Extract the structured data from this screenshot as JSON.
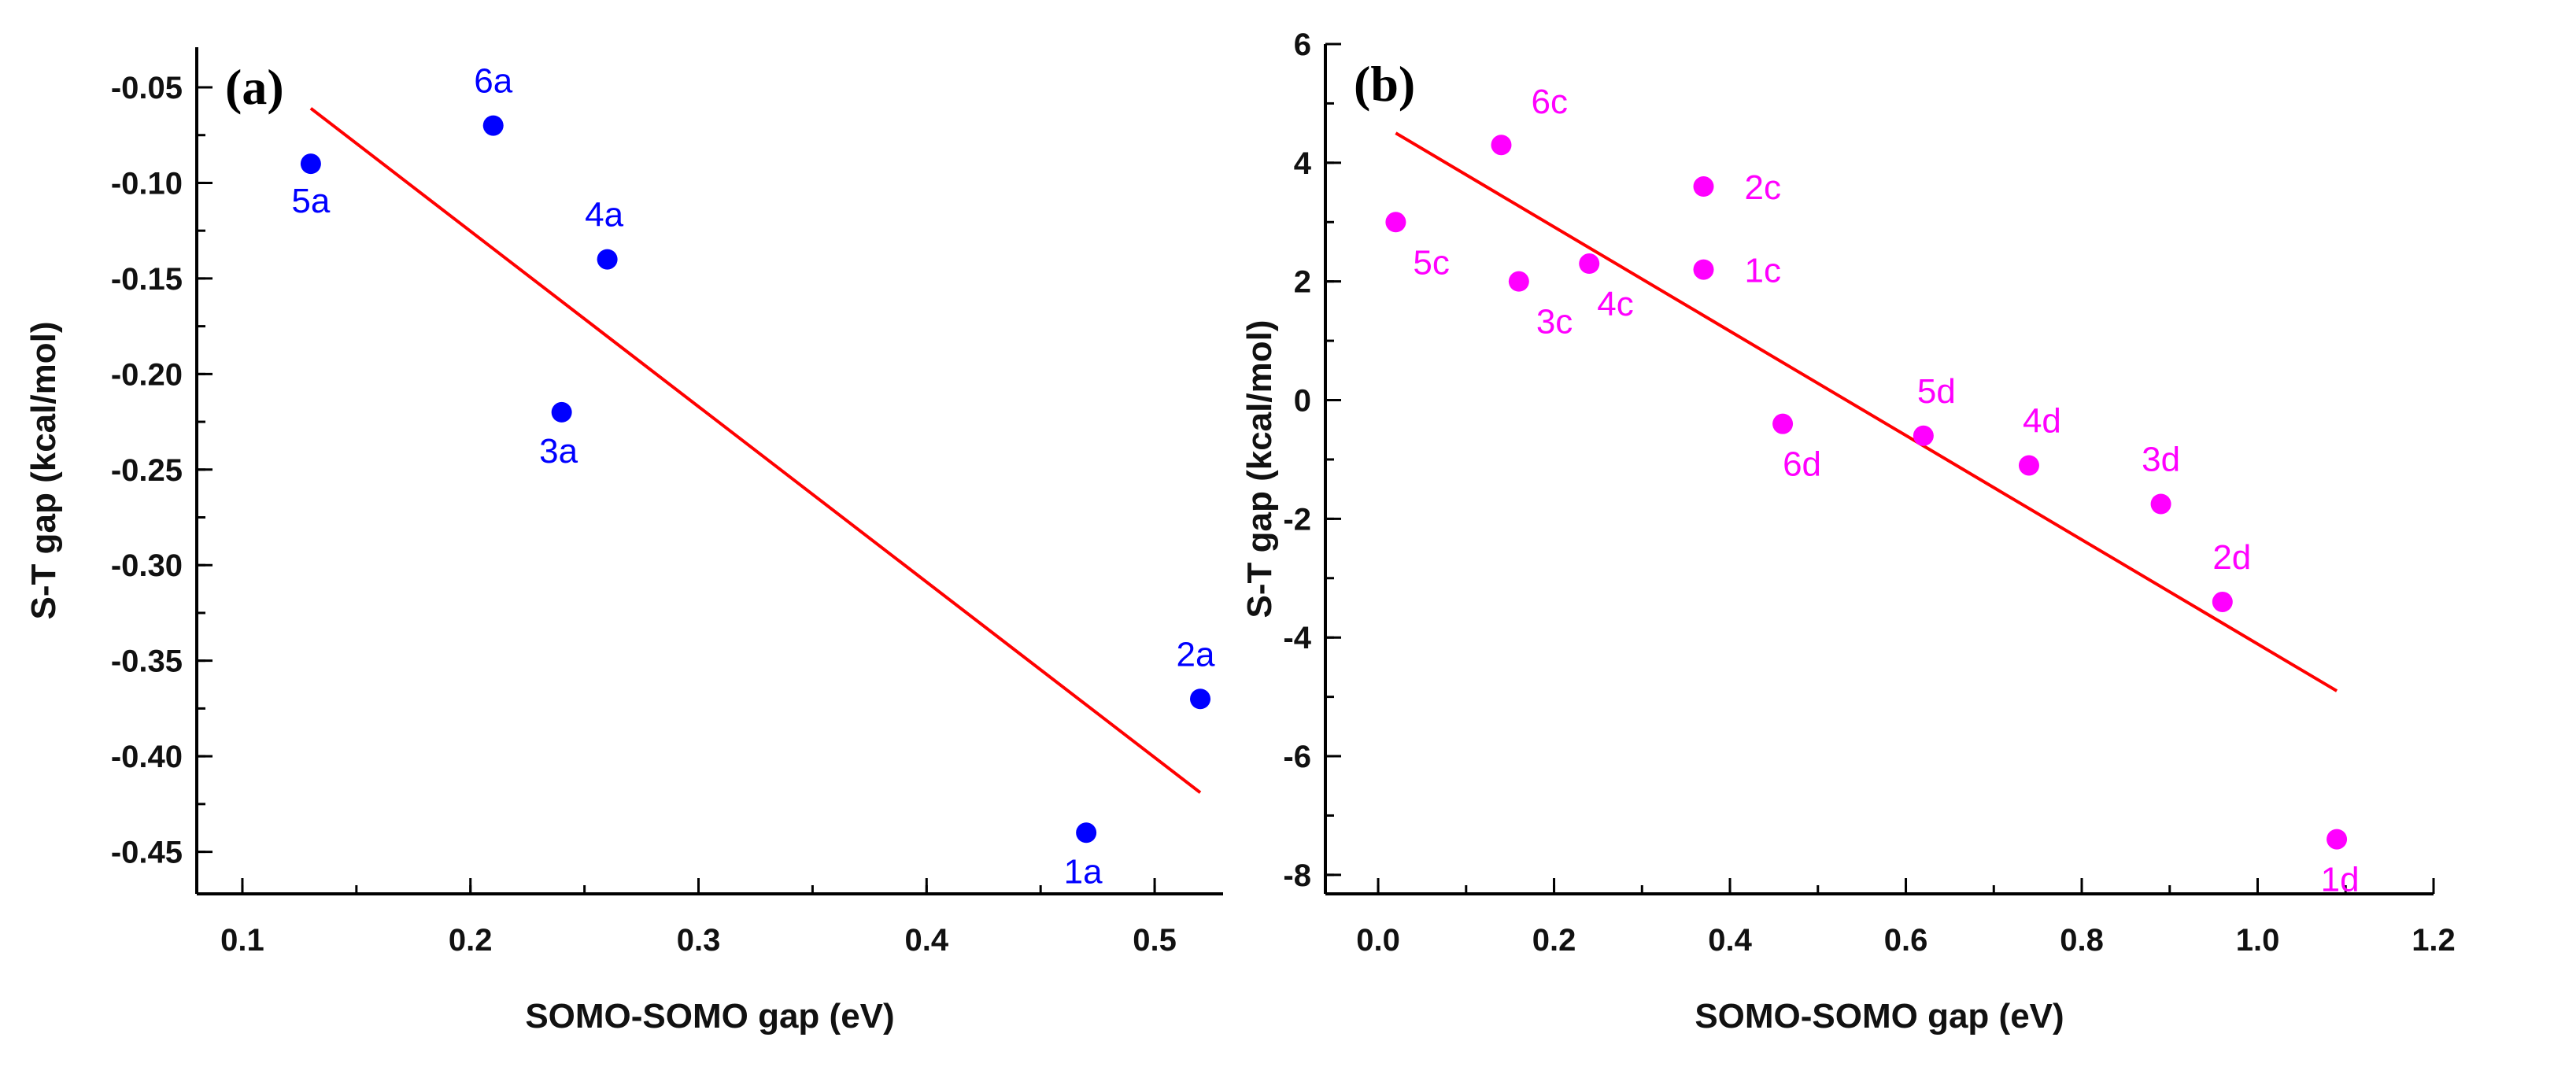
{
  "chart_data": [
    {
      "type": "scatter",
      "panel_label": "(a)",
      "xlabel": "SOMO-SOMO gap (eV)",
      "ylabel": "S-T gap (kcal/mol)",
      "xlim": [
        0.08,
        0.53
      ],
      "ylim": [
        -0.472,
        -0.029
      ],
      "xticks": [
        "0.1",
        "0.2",
        "0.3",
        "0.4",
        "0.5"
      ],
      "yticks": [
        "-0.05",
        "-0.10",
        "-0.15",
        "-0.20",
        "-0.25",
        "-0.30",
        "-0.35",
        "-0.40",
        "-0.45"
      ],
      "grid": false,
      "color": "#0000ff",
      "fit_color": "#ff0000",
      "points": [
        {
          "label": "5a",
          "x": 0.13,
          "y": -0.09
        },
        {
          "label": "6a",
          "x": 0.21,
          "y": -0.07
        },
        {
          "label": "4a",
          "x": 0.26,
          "y": -0.14
        },
        {
          "label": "3a",
          "x": 0.24,
          "y": -0.22
        },
        {
          "label": "2a",
          "x": 0.52,
          "y": -0.37
        },
        {
          "label": "1a",
          "x": 0.47,
          "y": -0.44
        }
      ],
      "fit_line": [
        [
          0.13,
          -0.061
        ],
        [
          0.52,
          -0.419
        ]
      ]
    },
    {
      "type": "scatter",
      "panel_label": "(b)",
      "xlabel": "SOMO-SOMO gap (eV)",
      "ylabel": "S-T gap (kcal/mol)",
      "xlim": [
        -0.06,
        1.2
      ],
      "ylim": [
        -8.32,
        6
      ],
      "xticks": [
        "0.0",
        "0.2",
        "0.4",
        "0.6",
        "0.8",
        "1.0",
        "1.2"
      ],
      "yticks": [
        "6",
        "4",
        "2",
        "0",
        "-2",
        "-4",
        "-6",
        "-8"
      ],
      "grid": false,
      "color": "#ff00ff",
      "fit_color": "#ff0000",
      "points": [
        {
          "label": "5c",
          "x": 0.02,
          "y": 3.0
        },
        {
          "label": "6c",
          "x": 0.14,
          "y": 4.3
        },
        {
          "label": "3c",
          "x": 0.16,
          "y": 2.0
        },
        {
          "label": "4c",
          "x": 0.24,
          "y": 2.3
        },
        {
          "label": "2c",
          "x": 0.37,
          "y": 3.6
        },
        {
          "label": "1c",
          "x": 0.37,
          "y": 2.2
        },
        {
          "label": "6d",
          "x": 0.46,
          "y": -0.4
        },
        {
          "label": "5d",
          "x": 0.62,
          "y": -0.6
        },
        {
          "label": "4d",
          "x": 0.74,
          "y": -1.1
        },
        {
          "label": "3d",
          "x": 0.89,
          "y": -1.75
        },
        {
          "label": "2d",
          "x": 0.96,
          "y": -3.4
        },
        {
          "label": "1d",
          "x": 1.09,
          "y": -7.4
        }
      ],
      "fit_line": [
        [
          0.02,
          4.5
        ],
        [
          1.09,
          -4.9
        ]
      ]
    }
  ]
}
